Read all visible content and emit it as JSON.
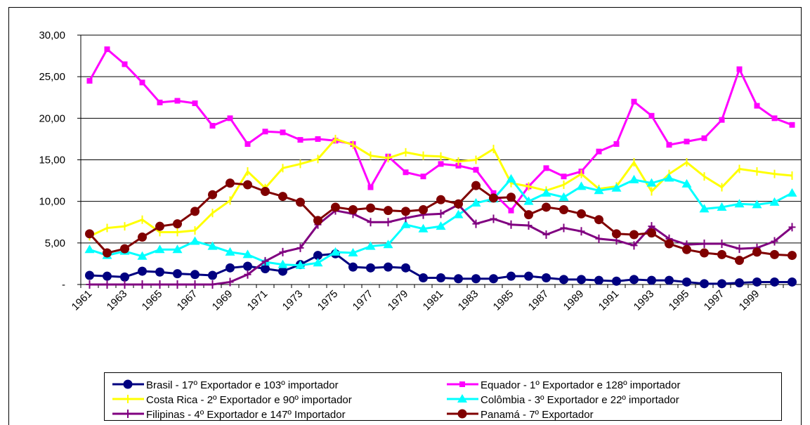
{
  "chart_data": {
    "type": "line",
    "categories": [
      "1961",
      null,
      "1963",
      null,
      "1965",
      null,
      "1967",
      null,
      "1969",
      null,
      "1971",
      null,
      "1973",
      null,
      "1975",
      null,
      "1977",
      null,
      "1979",
      null,
      "1981",
      null,
      "1983",
      null,
      "1985",
      null,
      "1987",
      null,
      "1989",
      null,
      "1991",
      null,
      "1993",
      null,
      "1995",
      null,
      "1997",
      null,
      "1999",
      null,
      null
    ],
    "ylim": [
      0,
      30
    ],
    "yticks": [
      {
        "value": 0,
        "label": "-"
      },
      {
        "value": 5,
        "label": "5,00"
      },
      {
        "value": 10,
        "label": "10,00"
      },
      {
        "value": 15,
        "label": "15,00"
      },
      {
        "value": 20,
        "label": "20,00"
      },
      {
        "value": 25,
        "label": "25,00"
      },
      {
        "value": 30,
        "label": "30,00"
      }
    ],
    "grid": true,
    "legend": "bottom",
    "series": [
      {
        "name": "Brasil - 17º Exportador e 103º importador",
        "color": "#000080",
        "marker": "circle",
        "values": [
          1.1,
          1.0,
          0.9,
          1.6,
          1.5,
          1.3,
          1.2,
          1.1,
          2.0,
          2.2,
          1.9,
          1.6,
          2.4,
          3.5,
          3.7,
          2.1,
          2.0,
          2.1,
          2.0,
          0.8,
          0.8,
          0.7,
          0.7,
          0.7,
          1.0,
          1.0,
          0.8,
          0.6,
          0.6,
          0.5,
          0.4,
          0.6,
          0.5,
          0.5,
          0.3,
          0.1,
          0.1,
          0.2,
          0.3,
          0.3,
          0.3
        ]
      },
      {
        "name": "Equador - 1º Exportador e 128º importador",
        "color": "#ff00ff",
        "marker": "square",
        "values": [
          24.5,
          28.3,
          26.5,
          24.3,
          21.9,
          22.1,
          21.8,
          19.1,
          20.0,
          16.9,
          18.4,
          18.3,
          17.4,
          17.5,
          17.3,
          16.9,
          11.7,
          15.4,
          13.5,
          13.0,
          14.5,
          14.3,
          13.8,
          11.0,
          8.9,
          11.8,
          14.0,
          13.0,
          13.6,
          16.0,
          16.9,
          22.0,
          20.3,
          16.8,
          17.2,
          17.6,
          19.8,
          25.9,
          21.5,
          20.0,
          19.2
        ]
      },
      {
        "name": "Costa Rica - 2º Exportador e 90º importador",
        "color": "#ffff00",
        "marker": "dash",
        "values": [
          5.8,
          6.8,
          7.0,
          7.8,
          6.3,
          6.3,
          6.5,
          8.6,
          10.1,
          13.6,
          11.6,
          14.0,
          14.5,
          15.1,
          17.5,
          16.8,
          15.5,
          15.2,
          15.9,
          15.5,
          15.4,
          14.8,
          15.0,
          16.3,
          12.2,
          11.8,
          11.3,
          12.0,
          13.3,
          11.5,
          11.8,
          14.7,
          11.2,
          13.3,
          14.7,
          13.0,
          11.7,
          13.9,
          13.6,
          13.3,
          13.1
        ]
      },
      {
        "name": "Colômbia - 3º Exportador e 22º importador",
        "color": "#00ffff",
        "marker": "triangle",
        "values": [
          4.2,
          3.5,
          4.0,
          3.4,
          4.2,
          4.2,
          5.2,
          4.6,
          3.9,
          3.6,
          2.7,
          2.4,
          2.3,
          2.6,
          3.9,
          3.8,
          4.6,
          4.8,
          7.2,
          6.7,
          7.0,
          8.4,
          9.8,
          10.3,
          12.7,
          10.0,
          11.0,
          10.5,
          11.8,
          11.3,
          11.6,
          12.6,
          12.2,
          12.8,
          12.1,
          9.1,
          9.3,
          9.7,
          9.6,
          9.9,
          11.0
        ]
      },
      {
        "name": "Filipinas - 4º Exportador e 147º Importador",
        "color": "#800080",
        "marker": "plus",
        "values": [
          0,
          0,
          0,
          0,
          0,
          0,
          0,
          0,
          0.3,
          1.2,
          2.8,
          3.9,
          4.4,
          7.2,
          8.9,
          8.5,
          7.5,
          7.5,
          8.0,
          8.4,
          8.5,
          9.6,
          7.3,
          7.9,
          7.2,
          7.1,
          6.0,
          6.8,
          6.4,
          5.5,
          5.3,
          4.7,
          7.0,
          5.5,
          4.8,
          4.9,
          4.9,
          4.3,
          4.4,
          5.2,
          6.9
        ]
      },
      {
        "name": "Panamá - 7º Exportador",
        "color": "#800000",
        "marker": "circle",
        "values": [
          6.1,
          3.8,
          4.3,
          5.7,
          7.0,
          7.3,
          8.8,
          10.8,
          12.2,
          12.0,
          11.2,
          10.6,
          9.9,
          7.7,
          9.3,
          9.0,
          9.2,
          8.9,
          8.8,
          9.0,
          10.2,
          9.7,
          11.9,
          10.4,
          10.5,
          8.4,
          9.3,
          9.0,
          8.5,
          7.8,
          6.1,
          6.0,
          6.2,
          4.9,
          4.2,
          3.8,
          3.6,
          2.9,
          3.9,
          3.6,
          3.5
        ]
      }
    ]
  }
}
